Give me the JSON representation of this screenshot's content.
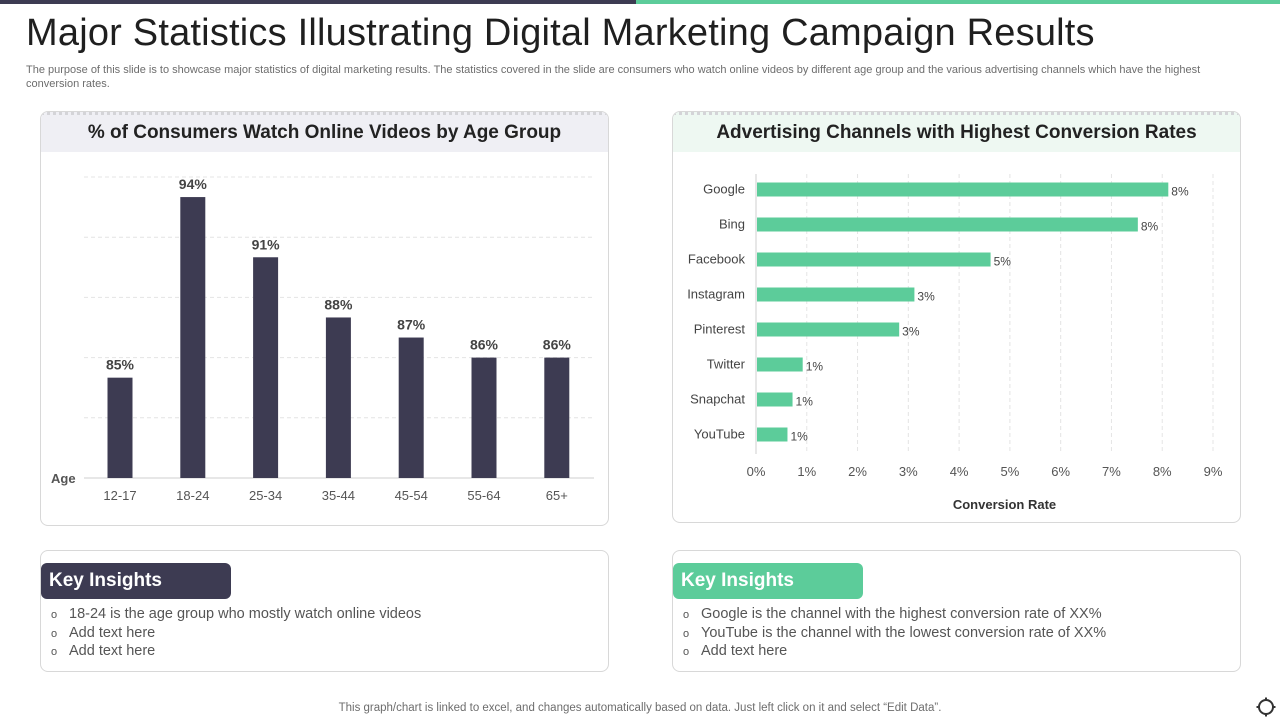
{
  "title": "Major Statistics Illustrating Digital Marketing Campaign Results",
  "subtitle": "The purpose of this slide is to showcase major statistics of digital marketing results. The statistics covered in the slide are consumers who watch online videos by different age group and the various advertising channels which have the highest conversion rates.",
  "colors": {
    "dark": "#3d3b52",
    "green": "#5ccc9a"
  },
  "left_chart_title": "% of Consumers Watch Online Videos by Age Group",
  "right_chart_title": "Advertising Channels with Highest Conversion Rates",
  "chart_data": [
    {
      "type": "bar",
      "title": "% of Consumers Watch Online Videos by Age Group",
      "categories": [
        "12-17",
        "18-24",
        "25-34",
        "35-44",
        "45-54",
        "55-64",
        "65+"
      ],
      "values": [
        85,
        94,
        91,
        88,
        87,
        86,
        86
      ],
      "data_labels": [
        "85%",
        "94%",
        "91%",
        "88%",
        "87%",
        "86%",
        "86%"
      ],
      "xlabel": "Age",
      "ylabel": "",
      "ylim": [
        80,
        95
      ],
      "grid": true,
      "color": "#3d3b52"
    },
    {
      "type": "bar",
      "orientation": "horizontal",
      "title": "Advertising Channels with Highest Conversion Rates",
      "categories": [
        "Google",
        "Bing",
        "Facebook",
        "Instagram",
        "Pinterest",
        "Twitter",
        "Snapchat",
        "YouTube"
      ],
      "values": [
        8.1,
        7.5,
        4.6,
        3.1,
        2.8,
        0.9,
        0.7,
        0.6
      ],
      "data_labels": [
        "8%",
        "8%",
        "5%",
        "3%",
        "3%",
        "1%",
        "1%",
        "1%"
      ],
      "xlabel": "Conversion Rate",
      "xticks": [
        "0%",
        "1%",
        "2%",
        "3%",
        "4%",
        "5%",
        "6%",
        "7%",
        "8%",
        "9%"
      ],
      "xlim": [
        0,
        9
      ],
      "grid": true,
      "color": "#5ccc9a"
    }
  ],
  "insights_left": {
    "heading": "Key Insights",
    "items": [
      "18-24 is the age group who mostly watch online videos",
      "Add text here",
      "Add text here"
    ]
  },
  "insights_right": {
    "heading": "Key Insights",
    "items": [
      "Google is the channel with the highest conversion rate of XX%",
      "YouTube is the channel with the lowest conversion rate of XX%",
      "Add text here"
    ]
  },
  "bullet": "o",
  "footer": "This graph/chart is linked to excel,  and changes automatically based on data. Just left click on it and select “Edit Data”.",
  "corner_icon": "settings-ring-icon"
}
